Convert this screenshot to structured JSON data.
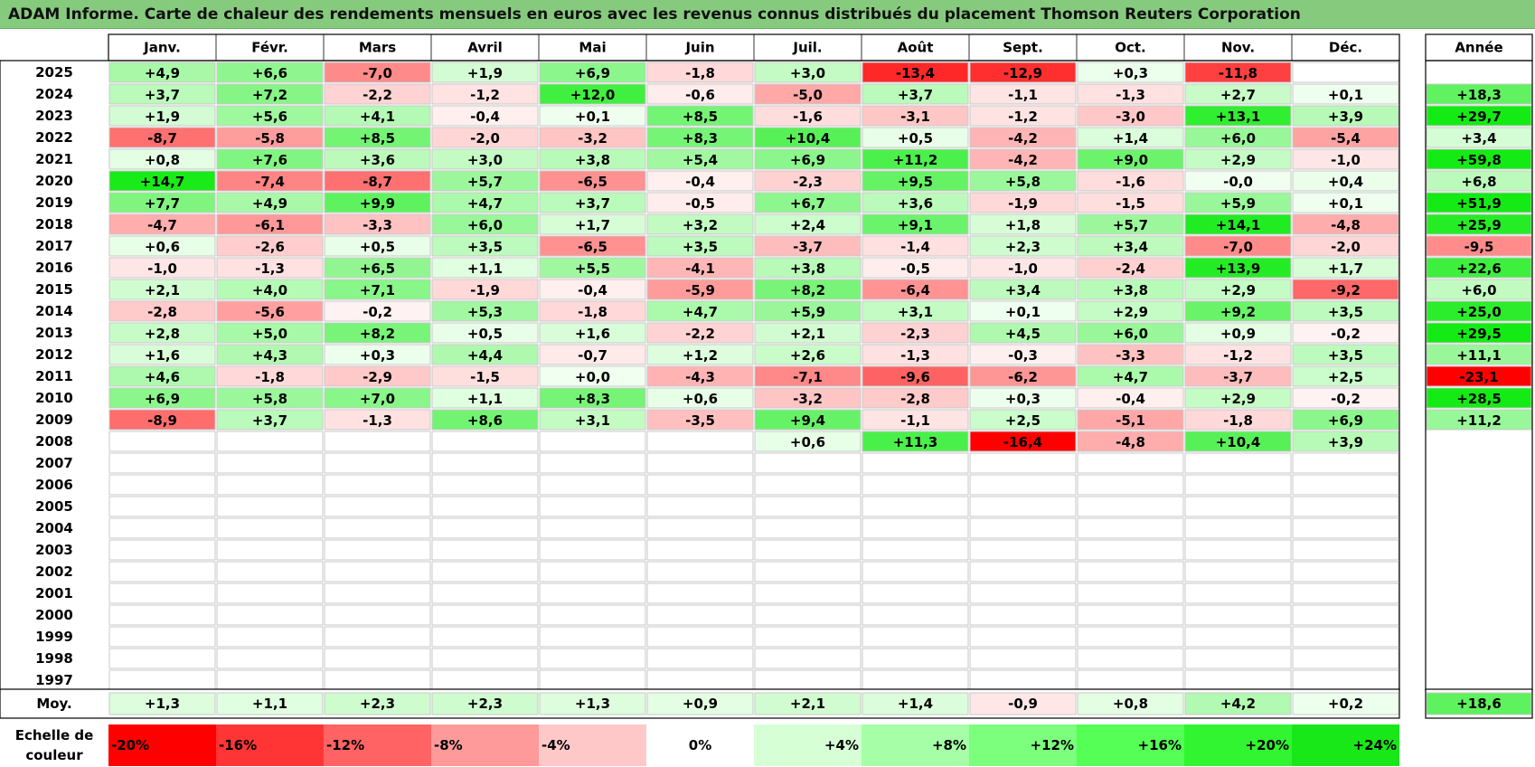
{
  "title": "ADAM Informe. Carte de chaleur des rendements mensuels en euros avec les revenus connus distribués du placement Thomson Reuters Corporation",
  "chart_data": {
    "type": "heatmap",
    "title": "ADAM Informe. Carte de chaleur des rendements mensuels en euros avec les revenus connus distribués du placement Thomson Reuters Corporation",
    "months": [
      "Janv.",
      "Févr.",
      "Mars",
      "Avril",
      "Mai",
      "Juin",
      "Juil.",
      "Août",
      "Sept.",
      "Oct.",
      "Nov.",
      "Déc."
    ],
    "annual_header": "Année",
    "rows": [
      {
        "year": "2025",
        "values": [
          "+4,9",
          "+6,6",
          "-7,0",
          "+1,9",
          "+6,9",
          "-1,8",
          "+3,0",
          "-13,4",
          "-12,9",
          "+0,3",
          "-11,8",
          ""
        ],
        "annual": ""
      },
      {
        "year": "2024",
        "values": [
          "+3,7",
          "+7,2",
          "-2,2",
          "-1,2",
          "+12,0",
          "-0,6",
          "-5,0",
          "+3,7",
          "-1,1",
          "-1,3",
          "+2,7",
          "+0,1"
        ],
        "annual": "+18,3"
      },
      {
        "year": "2023",
        "values": [
          "+1,9",
          "+5,6",
          "+4,1",
          "-0,4",
          "+0,1",
          "+8,5",
          "-1,6",
          "-3,1",
          "-1,2",
          "-3,0",
          "+13,1",
          "+3,9"
        ],
        "annual": "+29,7"
      },
      {
        "year": "2022",
        "values": [
          "-8,7",
          "-5,8",
          "+8,5",
          "-2,0",
          "-3,2",
          "+8,3",
          "+10,4",
          "+0,5",
          "-4,2",
          "+1,4",
          "+6,0",
          "-5,4"
        ],
        "annual": "+3,4"
      },
      {
        "year": "2021",
        "values": [
          "+0,8",
          "+7,6",
          "+3,6",
          "+3,0",
          "+3,8",
          "+5,4",
          "+6,9",
          "+11,2",
          "-4,2",
          "+9,0",
          "+2,9",
          "-1,0"
        ],
        "annual": "+59,8"
      },
      {
        "year": "2020",
        "values": [
          "+14,7",
          "-7,4",
          "-8,7",
          "+5,7",
          "-6,5",
          "-0,4",
          "-2,3",
          "+9,5",
          "+5,8",
          "-1,6",
          "-0,0",
          "+0,4"
        ],
        "annual": "+6,8"
      },
      {
        "year": "2019",
        "values": [
          "+7,7",
          "+4,9",
          "+9,9",
          "+4,7",
          "+3,7",
          "-0,5",
          "+6,7",
          "+3,6",
          "-1,9",
          "-1,5",
          "+5,9",
          "+0,1"
        ],
        "annual": "+51,9"
      },
      {
        "year": "2018",
        "values": [
          "-4,7",
          "-6,1",
          "-3,3",
          "+6,0",
          "+1,7",
          "+3,2",
          "+2,4",
          "+9,1",
          "+1,8",
          "+5,7",
          "+14,1",
          "-4,8"
        ],
        "annual": "+25,9"
      },
      {
        "year": "2017",
        "values": [
          "+0,6",
          "-2,6",
          "+0,5",
          "+3,5",
          "-6,5",
          "+3,5",
          "-3,7",
          "-1,4",
          "+2,3",
          "+3,4",
          "-7,0",
          "-2,0"
        ],
        "annual": "-9,5"
      },
      {
        "year": "2016",
        "values": [
          "-1,0",
          "-1,3",
          "+6,5",
          "+1,1",
          "+5,5",
          "-4,1",
          "+3,8",
          "-0,5",
          "-1,0",
          "-2,4",
          "+13,9",
          "+1,7"
        ],
        "annual": "+22,6"
      },
      {
        "year": "2015",
        "values": [
          "+2,1",
          "+4,0",
          "+7,1",
          "-1,9",
          "-0,4",
          "-5,9",
          "+8,2",
          "-6,4",
          "+3,4",
          "+3,8",
          "+2,9",
          "-9,2"
        ],
        "annual": "+6,0"
      },
      {
        "year": "2014",
        "values": [
          "-2,8",
          "-5,6",
          "-0,2",
          "+5,3",
          "-1,8",
          "+4,7",
          "+5,9",
          "+3,1",
          "+0,1",
          "+2,9",
          "+9,2",
          "+3,5"
        ],
        "annual": "+25,0"
      },
      {
        "year": "2013",
        "values": [
          "+2,8",
          "+5,0",
          "+8,2",
          "+0,5",
          "+1,6",
          "-2,2",
          "+2,1",
          "-2,3",
          "+4,5",
          "+6,0",
          "+0,9",
          "-0,2"
        ],
        "annual": "+29,5"
      },
      {
        "year": "2012",
        "values": [
          "+1,6",
          "+4,3",
          "+0,3",
          "+4,4",
          "-0,7",
          "+1,2",
          "+2,6",
          "-1,3",
          "-0,3",
          "-3,3",
          "-1,2",
          "+3,5"
        ],
        "annual": "+11,1"
      },
      {
        "year": "2011",
        "values": [
          "+4,6",
          "-1,8",
          "-2,9",
          "-1,5",
          "+0,0",
          "-4,3",
          "-7,1",
          "-9,6",
          "-6,2",
          "+4,7",
          "-3,7",
          "+2,5"
        ],
        "annual": "-23,1"
      },
      {
        "year": "2010",
        "values": [
          "+6,9",
          "+5,8",
          "+7,0",
          "+1,1",
          "+8,3",
          "+0,6",
          "-3,2",
          "-2,8",
          "+0,3",
          "-0,4",
          "+2,9",
          "-0,2"
        ],
        "annual": "+28,5"
      },
      {
        "year": "2009",
        "values": [
          "-8,9",
          "+3,7",
          "-1,3",
          "+8,6",
          "+3,1",
          "-3,5",
          "+9,4",
          "-1,1",
          "+2,5",
          "-5,1",
          "-1,8",
          "+6,9"
        ],
        "annual": "+11,2"
      },
      {
        "year": "2008",
        "values": [
          "",
          "",
          "",
          "",
          "",
          "",
          "+0,6",
          "+11,3",
          "-16,4",
          "-4,8",
          "+10,4",
          "+3,9"
        ],
        "annual": ""
      },
      {
        "year": "2007",
        "values": [
          "",
          "",
          "",
          "",
          "",
          "",
          "",
          "",
          "",
          "",
          "",
          ""
        ],
        "annual": ""
      },
      {
        "year": "2006",
        "values": [
          "",
          "",
          "",
          "",
          "",
          "",
          "",
          "",
          "",
          "",
          "",
          ""
        ],
        "annual": ""
      },
      {
        "year": "2005",
        "values": [
          "",
          "",
          "",
          "",
          "",
          "",
          "",
          "",
          "",
          "",
          "",
          ""
        ],
        "annual": ""
      },
      {
        "year": "2004",
        "values": [
          "",
          "",
          "",
          "",
          "",
          "",
          "",
          "",
          "",
          "",
          "",
          ""
        ],
        "annual": ""
      },
      {
        "year": "2003",
        "values": [
          "",
          "",
          "",
          "",
          "",
          "",
          "",
          "",
          "",
          "",
          "",
          ""
        ],
        "annual": ""
      },
      {
        "year": "2002",
        "values": [
          "",
          "",
          "",
          "",
          "",
          "",
          "",
          "",
          "",
          "",
          "",
          ""
        ],
        "annual": ""
      },
      {
        "year": "2001",
        "values": [
          "",
          "",
          "",
          "",
          "",
          "",
          "",
          "",
          "",
          "",
          "",
          ""
        ],
        "annual": ""
      },
      {
        "year": "2000",
        "values": [
          "",
          "",
          "",
          "",
          "",
          "",
          "",
          "",
          "",
          "",
          "",
          ""
        ],
        "annual": ""
      },
      {
        "year": "1999",
        "values": [
          "",
          "",
          "",
          "",
          "",
          "",
          "",
          "",
          "",
          "",
          "",
          ""
        ],
        "annual": ""
      },
      {
        "year": "1998",
        "values": [
          "",
          "",
          "",
          "",
          "",
          "",
          "",
          "",
          "",
          "",
          "",
          ""
        ],
        "annual": ""
      },
      {
        "year": "1997",
        "values": [
          "",
          "",
          "",
          "",
          "",
          "",
          "",
          "",
          "",
          "",
          "",
          ""
        ],
        "annual": ""
      }
    ],
    "average": {
      "label": "Moy.",
      "values": [
        "+1,3",
        "+1,1",
        "+2,3",
        "+2,3",
        "+1,3",
        "+0,9",
        "+2,1",
        "+1,4",
        "-0,9",
        "+0,8",
        "+4,2",
        "+0,2"
      ],
      "annual": "+18,6"
    },
    "legend": {
      "label_line1": "Echelle de",
      "label_line2": "couleur",
      "steps": [
        "-20%",
        "-16%",
        "-12%",
        "-8%",
        "-4%",
        "0%",
        "+4%",
        "+8%",
        "+12%",
        "+16%",
        "+20%",
        "+24%"
      ],
      "colors": [
        "#ff0000",
        "#ff3535",
        "#ff6363",
        "#ff9a9a",
        "#ffc8c8",
        "#ffffff",
        "#d6ffd6",
        "#a6ffa6",
        "#7cff7c",
        "#55ff55",
        "#30f530",
        "#18e818"
      ]
    },
    "colors": {
      "negative_max": "#ff0000",
      "zero": "#ffffff",
      "positive_monthly_max": "#18e818",
      "positive_annual_max": "#18e818",
      "grid": "#9a9a9a",
      "title_band": "#86ca7e"
    }
  }
}
